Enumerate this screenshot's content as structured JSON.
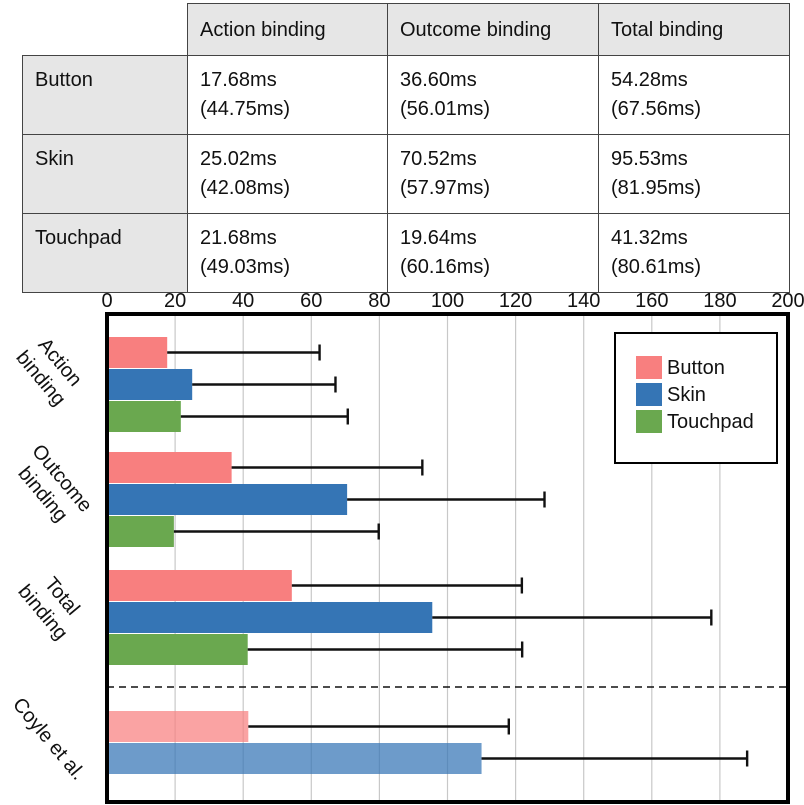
{
  "table": {
    "columns": [
      "",
      "Action binding",
      "Outcome binding",
      "Total binding"
    ],
    "rows": [
      {
        "label": "Button",
        "cells": [
          [
            "17.68ms",
            "(44.75ms)"
          ],
          [
            "36.60ms",
            "(56.01ms)"
          ],
          [
            "54.28ms",
            "(67.56ms)"
          ]
        ]
      },
      {
        "label": "Skin",
        "cells": [
          [
            "25.02ms",
            "(42.08ms)"
          ],
          [
            "70.52ms",
            "(57.97ms)"
          ],
          [
            "95.53ms",
            "(81.95ms)"
          ]
        ]
      },
      {
        "label": "Touchpad",
        "cells": [
          [
            "21.68ms",
            "(49.03ms)"
          ],
          [
            "19.64ms",
            "(60.16ms)"
          ],
          [
            "41.32ms",
            "(80.61ms)"
          ]
        ]
      }
    ]
  },
  "chart_data": {
    "type": "bar",
    "orientation": "horizontal",
    "xlim": [
      0,
      200
    ],
    "xticks": [
      "0",
      "20",
      "40",
      "60",
      "80",
      "100",
      "120",
      "140",
      "160",
      "180",
      "200"
    ],
    "x_axis_position": "top",
    "grid": "vertical",
    "categories": [
      "Action binding",
      "Outcome binding",
      "Total binding",
      "Coyle et al."
    ],
    "category_label_lines": [
      [
        "Action",
        "binding"
      ],
      [
        "Outcome",
        "binding"
      ],
      [
        "Total",
        "binding"
      ],
      [
        "Coyle et al."
      ]
    ],
    "series": [
      {
        "name": "Button",
        "color": "#f87f7f",
        "values": [
          17.68,
          36.6,
          54.28,
          41.5
        ],
        "errors": [
          44.75,
          56.01,
          67.56,
          76.5
        ]
      },
      {
        "name": "Skin",
        "color": "#3575b5",
        "values": [
          25.02,
          70.52,
          95.53,
          110.0
        ],
        "errors": [
          42.08,
          57.97,
          81.95,
          78.0
        ]
      },
      {
        "name": "Touchpad",
        "color": "#6aa84f",
        "values": [
          21.68,
          19.64,
          41.32,
          null
        ],
        "errors": [
          49.03,
          60.16,
          80.61,
          null
        ]
      }
    ],
    "faded_categories": [
      "Coyle et al."
    ],
    "separator_before": "Coyle et al.",
    "legend": {
      "position": "top-right",
      "entries": [
        "Button",
        "Skin",
        "Touchpad"
      ]
    }
  }
}
